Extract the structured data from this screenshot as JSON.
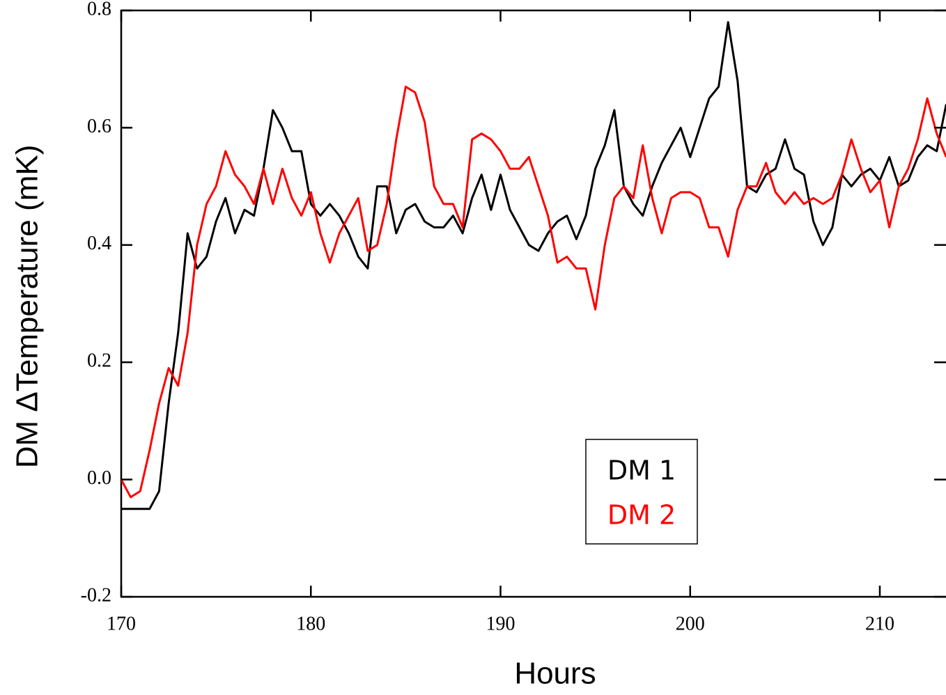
{
  "chart_data": {
    "type": "line",
    "xlabel": "Hours",
    "ylabel": "DM ΔTemperature (mK)",
    "x": [
      170,
      170.5,
      171,
      171.5,
      172,
      172.5,
      173,
      173.5,
      174,
      174.5,
      175,
      175.5,
      176,
      176.5,
      177,
      177.5,
      178,
      178.5,
      179,
      179.5,
      180,
      180.5,
      181,
      181.5,
      182,
      182.5,
      183,
      183.5,
      184,
      184.5,
      185,
      185.5,
      186,
      186.5,
      187,
      187.5,
      188,
      188.5,
      189,
      189.5,
      190,
      190.5,
      191,
      191.5,
      192,
      192.5,
      193,
      193.5,
      194,
      194.5,
      195,
      195.5,
      196,
      196.5,
      197,
      197.5,
      198,
      198.5,
      199,
      199.5,
      200,
      200.5,
      201,
      201.5,
      202,
      202.5,
      203,
      203.5,
      204,
      204.5,
      205,
      205.5,
      206,
      206.5,
      207,
      207.5,
      208,
      208.5,
      209,
      209.5,
      210,
      210.5,
      211,
      211.5,
      212,
      212.5,
      213,
      213.5
    ],
    "series": [
      {
        "name": "DM 1",
        "color": "#000000",
        "values": [
          -0.05,
          -0.05,
          -0.05,
          -0.05,
          -0.02,
          0.13,
          0.25,
          0.42,
          0.36,
          0.38,
          0.44,
          0.48,
          0.42,
          0.46,
          0.45,
          0.53,
          0.63,
          0.6,
          0.56,
          0.56,
          0.47,
          0.45,
          0.47,
          0.45,
          0.42,
          0.38,
          0.36,
          0.5,
          0.5,
          0.42,
          0.46,
          0.47,
          0.44,
          0.43,
          0.43,
          0.45,
          0.42,
          0.48,
          0.52,
          0.46,
          0.52,
          0.46,
          0.43,
          0.4,
          0.39,
          0.42,
          0.44,
          0.45,
          0.41,
          0.45,
          0.53,
          0.57,
          0.63,
          0.5,
          0.47,
          0.45,
          0.5,
          0.54,
          0.57,
          0.6,
          0.55,
          0.6,
          0.65,
          0.67,
          0.78,
          0.68,
          0.5,
          0.49,
          0.52,
          0.53,
          0.58,
          0.53,
          0.52,
          0.44,
          0.4,
          0.43,
          0.52,
          0.5,
          0.52,
          0.53,
          0.51,
          0.55,
          0.5,
          0.51,
          0.55,
          0.57,
          0.56,
          0.64
        ]
      },
      {
        "name": "DM 2",
        "color": "#ff0000",
        "values": [
          0.0,
          -0.03,
          -0.02,
          0.05,
          0.13,
          0.19,
          0.16,
          0.25,
          0.4,
          0.47,
          0.5,
          0.56,
          0.52,
          0.5,
          0.47,
          0.53,
          0.47,
          0.53,
          0.48,
          0.45,
          0.49,
          0.42,
          0.37,
          0.42,
          0.45,
          0.48,
          0.39,
          0.4,
          0.47,
          0.58,
          0.67,
          0.66,
          0.61,
          0.5,
          0.47,
          0.47,
          0.43,
          0.58,
          0.59,
          0.58,
          0.56,
          0.53,
          0.53,
          0.55,
          0.5,
          0.45,
          0.37,
          0.38,
          0.36,
          0.36,
          0.29,
          0.4,
          0.48,
          0.5,
          0.48,
          0.57,
          0.48,
          0.42,
          0.48,
          0.49,
          0.49,
          0.48,
          0.43,
          0.43,
          0.38,
          0.46,
          0.5,
          0.5,
          0.54,
          0.49,
          0.47,
          0.49,
          0.47,
          0.48,
          0.47,
          0.48,
          0.52,
          0.58,
          0.53,
          0.49,
          0.51,
          0.43,
          0.5,
          0.53,
          0.58,
          0.65,
          0.59,
          0.55
        ]
      }
    ],
    "xlim": [
      170,
      213.5
    ],
    "xticks": [
      170,
      180,
      190,
      200,
      210
    ],
    "ylim": [
      -0.2,
      0.8
    ],
    "yticks": [
      -0.2,
      {
        "value": 0,
        "label": "0.0"
      },
      0.2,
      0.4,
      0.6,
      0.8
    ],
    "grid": false
  }
}
